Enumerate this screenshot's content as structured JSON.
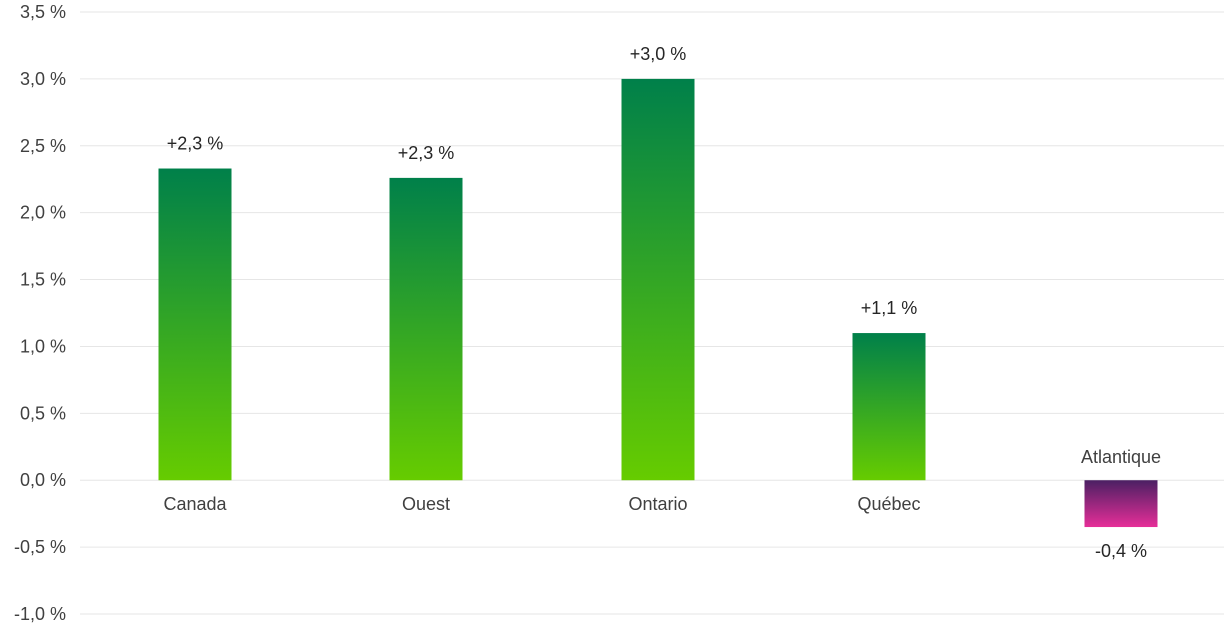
{
  "chart_data": {
    "type": "bar",
    "categories": [
      "Canada",
      "Ouest",
      "Ontario",
      "Québec",
      "Atlantique"
    ],
    "values": [
      2.33,
      2.26,
      3.0,
      1.1,
      -0.35
    ],
    "data_labels": [
      "+2,3 %",
      "+2,3 %",
      "+3,0 %",
      "+1,1 %",
      "-0,4 %"
    ],
    "ylim": [
      -1.0,
      3.5
    ],
    "yticks": [
      3.5,
      3.0,
      2.5,
      2.0,
      1.5,
      1.0,
      0.5,
      0.0,
      -0.5,
      -1.0
    ],
    "ytick_labels": [
      "3,5 %",
      "3,0 %",
      "2,5 %",
      "2,0 %",
      "1,5 %",
      "1,0 %",
      "0,5 %",
      "0,0 %",
      "-0,5 %",
      "-1,0 %"
    ],
    "grid": true,
    "legend": "none",
    "colors": {
      "positive_top": "#00804a",
      "positive_bottom": "#66cc00",
      "negative_top": "#4b2063",
      "negative_bottom": "#e62e98",
      "grid": "#e6e6e6",
      "text": "#404040"
    }
  }
}
